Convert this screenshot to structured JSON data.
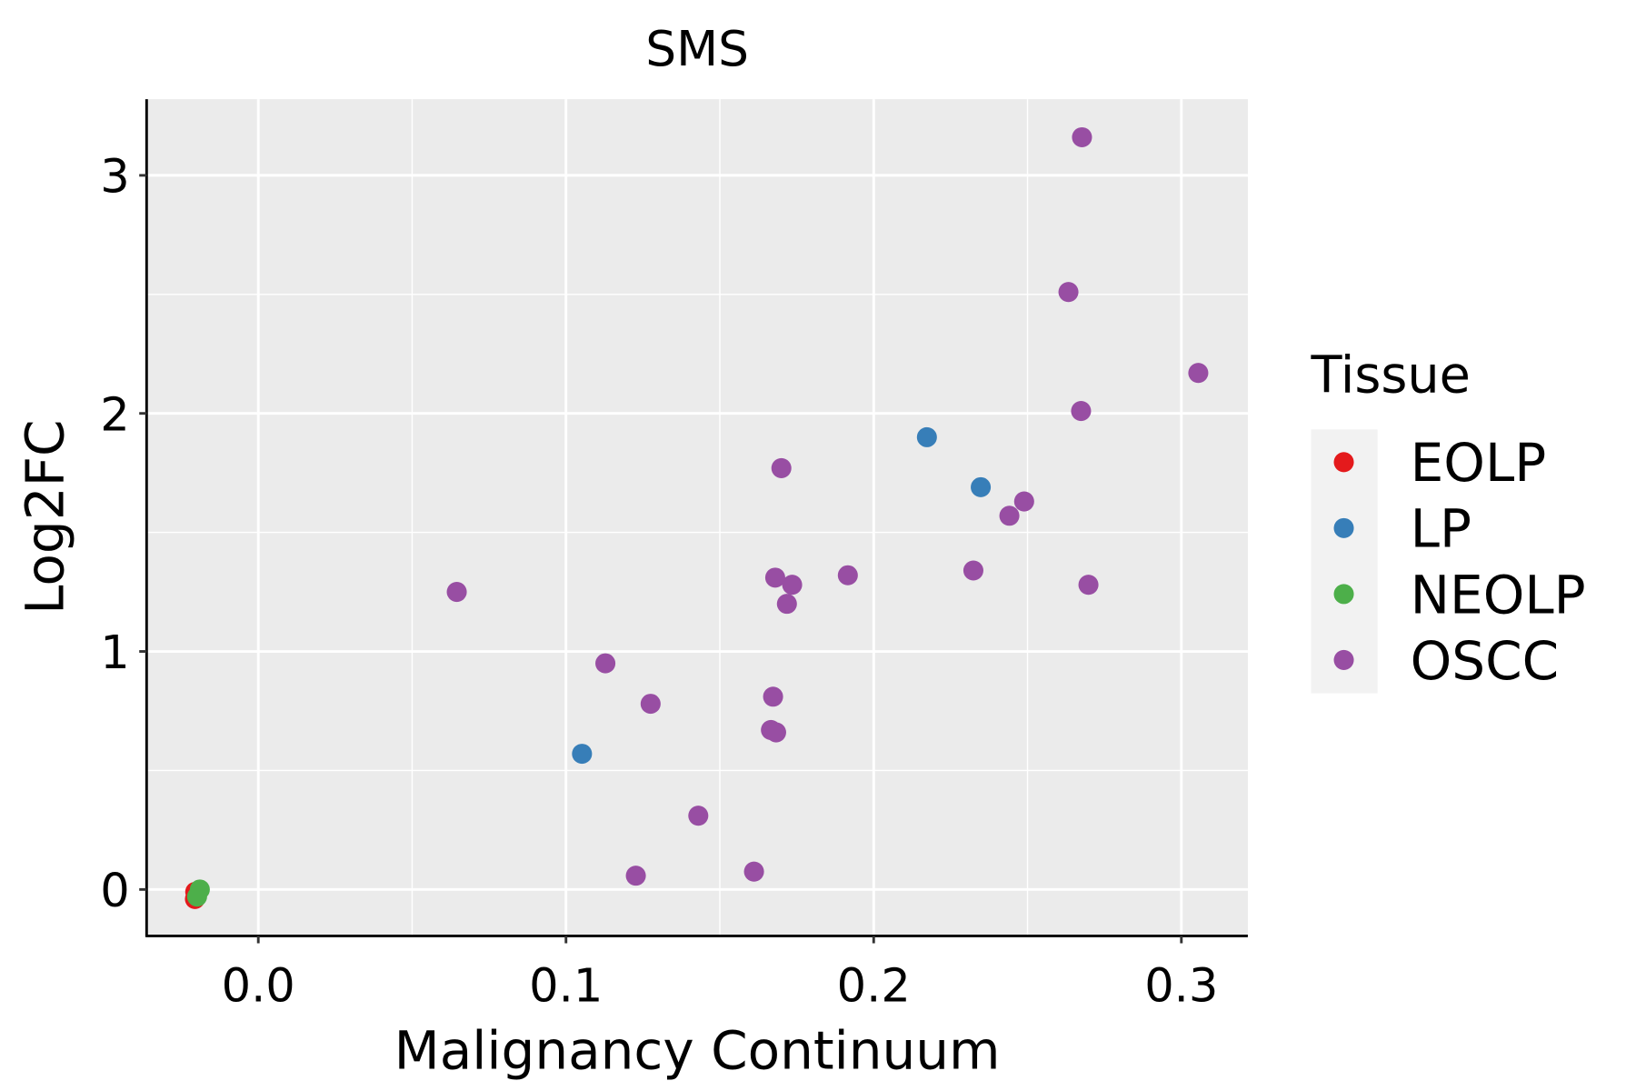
{
  "chart_data": {
    "type": "scatter",
    "title": "SMS",
    "xlabel": "Malignancy Continuum",
    "ylabel": "Log2FC",
    "xlim": [
      -0.0363,
      0.3216
    ],
    "ylim": [
      -0.195,
      3.32
    ],
    "xticks": [
      0.0,
      0.1,
      0.2,
      0.3
    ],
    "xtick_labels": [
      "0.0",
      "0.1",
      "0.2",
      "0.3"
    ],
    "yticks": [
      0,
      1,
      2,
      3
    ],
    "ytick_labels": [
      "0",
      "1",
      "2",
      "3"
    ],
    "grid": true,
    "legend": {
      "title": "Tissue",
      "placement": "right",
      "entries": [
        {
          "label": "EOLP",
          "color": "#E41A1C"
        },
        {
          "label": "LP",
          "color": "#377EB8"
        },
        {
          "label": "NEOLP",
          "color": "#4DAF4A"
        },
        {
          "label": "OSCC",
          "color": "#984EA3"
        }
      ]
    },
    "series": [
      {
        "name": "EOLP",
        "color": "#E41A1C",
        "points": [
          [
            -0.0206,
            -0.04
          ],
          [
            -0.0205,
            -0.01
          ]
        ]
      },
      {
        "name": "LP",
        "color": "#377EB8",
        "points": [
          [
            0.2173,
            1.9
          ],
          [
            0.2348,
            1.69
          ],
          [
            0.1052,
            0.57
          ]
        ]
      },
      {
        "name": "NEOLP",
        "color": "#4DAF4A",
        "points": [
          [
            -0.019,
            0.0
          ],
          [
            -0.0199,
            -0.03
          ]
        ]
      },
      {
        "name": "OSCC",
        "color": "#984EA3",
        "points": [
          [
            0.2677,
            3.16
          ],
          [
            0.2633,
            2.51
          ],
          [
            0.3055,
            2.17
          ],
          [
            0.2674,
            2.01
          ],
          [
            0.17,
            1.77
          ],
          [
            0.2489,
            1.63
          ],
          [
            0.2441,
            1.57
          ],
          [
            0.2324,
            1.34
          ],
          [
            0.2698,
            1.28
          ],
          [
            0.1916,
            1.32
          ],
          [
            0.168,
            1.31
          ],
          [
            0.1735,
            1.28
          ],
          [
            0.1718,
            1.2
          ],
          [
            0.0645,
            1.25
          ],
          [
            0.1128,
            0.95
          ],
          [
            0.1275,
            0.78
          ],
          [
            0.1673,
            0.81
          ],
          [
            0.1666,
            0.67
          ],
          [
            0.1683,
            0.66
          ],
          [
            0.143,
            0.31
          ],
          [
            0.1611,
            0.075
          ],
          [
            0.1227,
            0.058
          ]
        ]
      }
    ]
  }
}
